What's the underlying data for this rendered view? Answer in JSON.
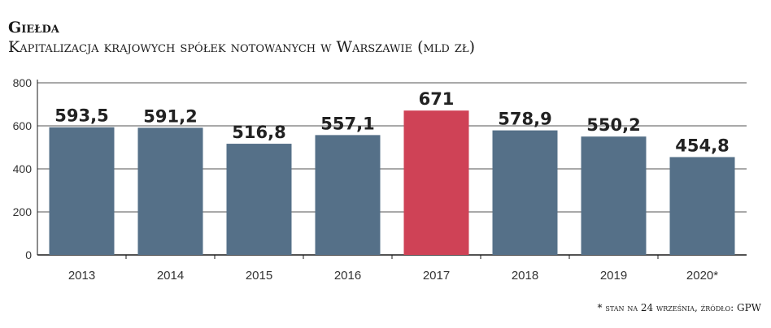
{
  "header": {
    "title": "Giełda",
    "subtitle": "Kapitalizacja krajowych spółek notowanych w Warszawie (mld zł)"
  },
  "footnote": "* stan na 24 września, źródło: GPW",
  "colors": {
    "bar": "#557088",
    "highlight": "#cf4256",
    "grid": "#1a1a1a",
    "axis": "#1a1a1a"
  },
  "chart_data": {
    "type": "bar",
    "categories": [
      "2013",
      "2014",
      "2015",
      "2016",
      "2017",
      "2018",
      "2019",
      "2020*"
    ],
    "values": [
      593.5,
      591.2,
      516.8,
      557.1,
      671,
      578.9,
      550.2,
      454.8
    ],
    "value_labels": [
      "593,5",
      "591,2",
      "516,8",
      "557,1",
      "671",
      "578,9",
      "550,2",
      "454,8"
    ],
    "highlight_category": "2017",
    "ylim": [
      0,
      800
    ],
    "yticks": [
      0,
      200,
      400,
      600,
      800
    ],
    "title": "Giełda",
    "subtitle": "Kapitalizacja krajowych spółek notowanych w Warszawie (mld zł)",
    "xlabel": "",
    "ylabel": "",
    "grid": true
  }
}
